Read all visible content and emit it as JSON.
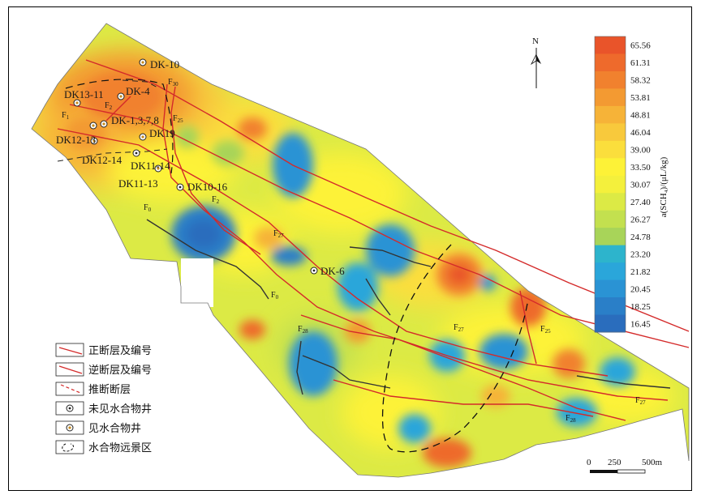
{
  "north_label": "N",
  "colorbar": {
    "title": "a(SCH₄)/(μL/kg)",
    "ticks": [
      "65.56",
      "61.31",
      "58.32",
      "53.81",
      "48.81",
      "46.04",
      "39.00",
      "33.50",
      "30.07",
      "27.40",
      "26.27",
      "24.78",
      "23.20",
      "21.82",
      "20.45",
      "18.25",
      "16.45"
    ],
    "colors": [
      "#e9542a",
      "#ee6a2c",
      "#f1812e",
      "#f39a32",
      "#f6b338",
      "#f8c93c",
      "#fbde3c",
      "#fdf237",
      "#f4f03c",
      "#dcea45",
      "#c3e04f",
      "#a8d459",
      "#2db4cc",
      "#2aa6da",
      "#2a93d4",
      "#2a7fc8",
      "#2a6dbd"
    ]
  },
  "wells": [
    {
      "name": "DK-10",
      "found": true
    },
    {
      "name": "DK-4",
      "found": true
    },
    {
      "name": "DK13-11",
      "found": true
    },
    {
      "name": "DK-1,3,7,8",
      "found": true
    },
    {
      "name": "DK19",
      "found": true
    },
    {
      "name": "DK12-13",
      "found": true
    },
    {
      "name": "DK12-14",
      "found": false
    },
    {
      "name": "DK11-14",
      "found": true
    },
    {
      "name": "DK11-13",
      "found": false
    },
    {
      "name": "DK10-16",
      "found": false
    },
    {
      "name": "DK-6",
      "found": false
    }
  ],
  "faults": [
    {
      "base": "F",
      "sub": "30"
    },
    {
      "base": "F",
      "sub": "2"
    },
    {
      "base": "F",
      "sub": "1"
    },
    {
      "base": "F",
      "sub": "25"
    },
    {
      "base": "F",
      "sub": "2"
    },
    {
      "base": "F",
      "sub": "0"
    },
    {
      "base": "F",
      "sub": "27"
    },
    {
      "base": "F",
      "sub": "0"
    },
    {
      "base": "F",
      "sub": "28"
    },
    {
      "base": "F",
      "sub": "27"
    },
    {
      "base": "F",
      "sub": "25"
    },
    {
      "base": "F",
      "sub": "27"
    },
    {
      "base": "F",
      "sub": "28"
    }
  ],
  "legend": {
    "items": [
      "正断层及编号",
      "逆断层及编号",
      "推断断层",
      "未见水合物井",
      "见水合物井",
      "水合物远景区"
    ]
  },
  "scalebar": {
    "labels": [
      "0",
      "250",
      "500m"
    ]
  }
}
